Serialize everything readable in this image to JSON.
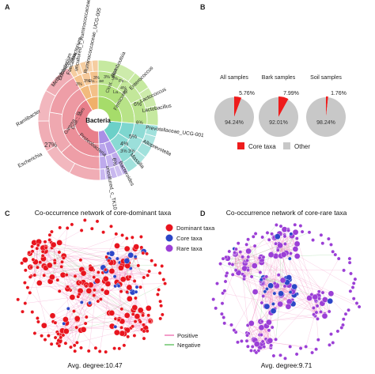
{
  "panels": {
    "a": "A",
    "b": "B",
    "c": "C",
    "d": "D"
  },
  "colors": {
    "core": "#ee1c1c",
    "other": "#c8c8c8",
    "dominant": "#e8141e",
    "rare": "#9b3fd6",
    "core_node": "#2c46c8",
    "positive": "#f07cb8",
    "negative": "#6cc56c",
    "sunburst_green": "#a6dc6a",
    "sunburst_red": "#e87f8b",
    "sunburst_teal": "#6cd0c8",
    "sunburst_purple": "#a98fe6",
    "sunburst_orange": "#f0b06a"
  },
  "sunburst": {
    "center_label": "Bacteria",
    "sector_labels": [
      "Firmicutes",
      "Clost... iales",
      "Proteobacteria"
    ],
    "small_labels": [
      "Ru... ae",
      "La... es",
      "Ps...",
      "3%",
      "3%",
      "3%",
      "3%",
      "3%",
      "4%",
      "6%",
      "3%"
    ],
    "pct_labels": {
      "p27": "27%",
      "p6a": "6%",
      "p6b": "6%",
      "p5": "5%",
      "p4": "4%",
      "p3": "3%"
    },
    "outer_labels": [
      "uncultured_f_Ruminococcaceae",
      "Ruminococcaceae_UCG-005",
      "Faecalibacterium",
      "Eubacterium",
      "Methylobacterium",
      "Romboutsia",
      "Enterococcus",
      "Lactococcus",
      "Lactobacillus",
      "Prevotellaceae_UCG-001",
      "Alloprevotella",
      "Massilia",
      "Bacteroides",
      "uncultured_c_TK10",
      "Ramlibacter",
      "Escherichia",
      "Gamma... ia",
      "Ente... ales"
    ]
  },
  "chart_data": [
    {
      "type": "pie",
      "title": "All samples",
      "slices": [
        {
          "label": "Core taxa",
          "value": 5.76
        },
        {
          "label": "Other",
          "value": 94.24
        }
      ],
      "labels": [
        "5.76%",
        "94.24%"
      ]
    },
    {
      "type": "pie",
      "title": "Bark samples",
      "slices": [
        {
          "label": "Core taxa",
          "value": 7.99
        },
        {
          "label": "Other",
          "value": 92.01
        }
      ],
      "labels": [
        "7.99%",
        "92.01%"
      ]
    },
    {
      "type": "pie",
      "title": "Soil samples",
      "slices": [
        {
          "label": "Core taxa",
          "value": 1.76
        },
        {
          "label": "Other",
          "value": 98.24
        }
      ],
      "labels": [
        "1.76%",
        "98.24%"
      ]
    }
  ],
  "pie_legend": [
    {
      "label": "Core taxa",
      "color": "#ee1c1c"
    },
    {
      "label": "Other",
      "color": "#c8c8c8"
    }
  ],
  "network_c": {
    "title": "Co-occurrence network of core-dominant taxa",
    "legend": [
      "Dominant taxa",
      "Core taxa",
      "Rare taxa"
    ],
    "edge_legend": [
      "Positive",
      "Negative"
    ],
    "avg_degree": "Avg. degree:10.47"
  },
  "network_d": {
    "title": "Co-occurrence network of core-rare taxa",
    "avg_degree": "Avg. degree:9.71"
  }
}
